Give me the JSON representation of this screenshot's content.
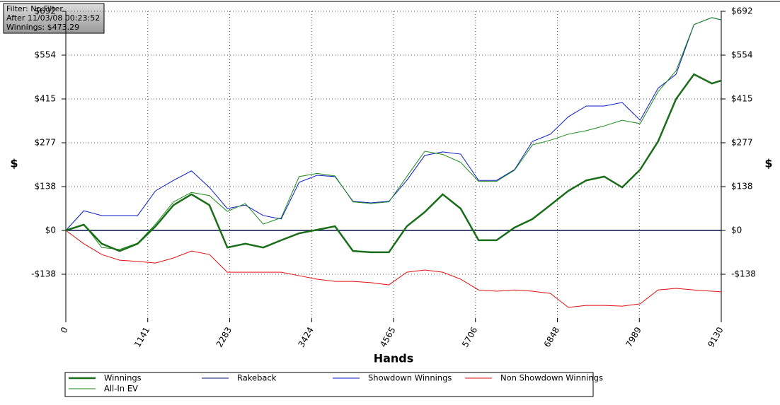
{
  "chart_data": {
    "type": "line",
    "info": [
      "Filter: No Filter",
      "After 11/03/08 00:23:52",
      "Winnings: $473.29"
    ],
    "xlabel": "Hands",
    "ylabel": "$",
    "y2label": "$",
    "x": [
      0,
      250,
      500,
      750,
      1000,
      1250,
      1500,
      1750,
      2000,
      2250,
      2500,
      2750,
      3000,
      3250,
      3500,
      3750,
      4000,
      4250,
      4500,
      4750,
      5000,
      5250,
      5500,
      5750,
      6000,
      6250,
      6500,
      6750,
      7000,
      7250,
      7500,
      7750,
      8000,
      8250,
      8500,
      8750,
      9000,
      9130
    ],
    "series": [
      {
        "name": "Winnings",
        "color": "#1a6e1a",
        "width": 2.5,
        "values": [
          0,
          18,
          -42,
          -65,
          -42,
          13,
          80,
          114,
          80,
          -54,
          -42,
          -54,
          -31,
          -9,
          2,
          13,
          -65,
          -69,
          -69,
          13,
          58,
          114,
          69,
          -31,
          -31,
          9,
          36,
          80,
          125,
          158,
          170,
          136,
          192,
          281,
          415,
          493,
          464,
          473.29
        ]
      },
      {
        "name": "Rakeback",
        "color": "#0a1a6e",
        "width": 1,
        "values": [
          0,
          0,
          0,
          0,
          0,
          0,
          0,
          0,
          0,
          0,
          0,
          0,
          0,
          0,
          0,
          0,
          0,
          0,
          0,
          0,
          0,
          0,
          0,
          0,
          0,
          0,
          0,
          0,
          0,
          0,
          0,
          0,
          0,
          0,
          0,
          0,
          0,
          0
        ]
      },
      {
        "name": "Showdown Winnings",
        "color": "#0a1ac8",
        "width": 1,
        "values": [
          0,
          62,
          47,
          47,
          47,
          125,
          158,
          188,
          136,
          69,
          80,
          47,
          36,
          152,
          174,
          170,
          92,
          87,
          92,
          158,
          237,
          248,
          241,
          158,
          158,
          192,
          281,
          304,
          359,
          393,
          393,
          404,
          348,
          449,
          493,
          650,
          672,
          665
        ]
      },
      {
        "name": "Non Showdown Winnings",
        "color": "#e01010",
        "width": 1,
        "values": [
          0,
          -42,
          -76,
          -94,
          -98,
          -103,
          -87,
          -65,
          -76,
          -132,
          -132,
          -132,
          -132,
          -143,
          -154,
          -161,
          -161,
          -165,
          -172,
          -132,
          -125,
          -132,
          -154,
          -188,
          -192,
          -188,
          -192,
          -199,
          -243,
          -237,
          -237,
          -239,
          -232,
          -188,
          -183,
          -188,
          -192,
          -194
        ]
      },
      {
        "name": "All-In EV",
        "color": "#1a8a1a",
        "width": 1,
        "values": [
          0,
          20,
          -54,
          -60,
          -40,
          20,
          90,
          120,
          110,
          60,
          85,
          20,
          40,
          170,
          180,
          172,
          90,
          85,
          90,
          170,
          250,
          240,
          215,
          155,
          155,
          190,
          270,
          285,
          304,
          315,
          330,
          348,
          337,
          438,
          504,
          650,
          672,
          665
        ]
      }
    ],
    "xlim": [
      0,
      9130
    ],
    "xticks": [
      0,
      1141,
      2283,
      3424,
      4565,
      5706,
      6848,
      7989,
      9130
    ],
    "ylim": [
      -276.8,
      692
    ],
    "yticks": [
      {
        "value": -138.4,
        "label": "-$138"
      },
      {
        "value": 0,
        "label": "$0"
      },
      {
        "value": 138.4,
        "label": "$138"
      },
      {
        "value": 276.8,
        "label": "$277"
      },
      {
        "value": 415.2,
        "label": "$415"
      },
      {
        "value": 553.6,
        "label": "$554"
      },
      {
        "value": 692,
        "label": "$692"
      }
    ],
    "grid": true
  }
}
